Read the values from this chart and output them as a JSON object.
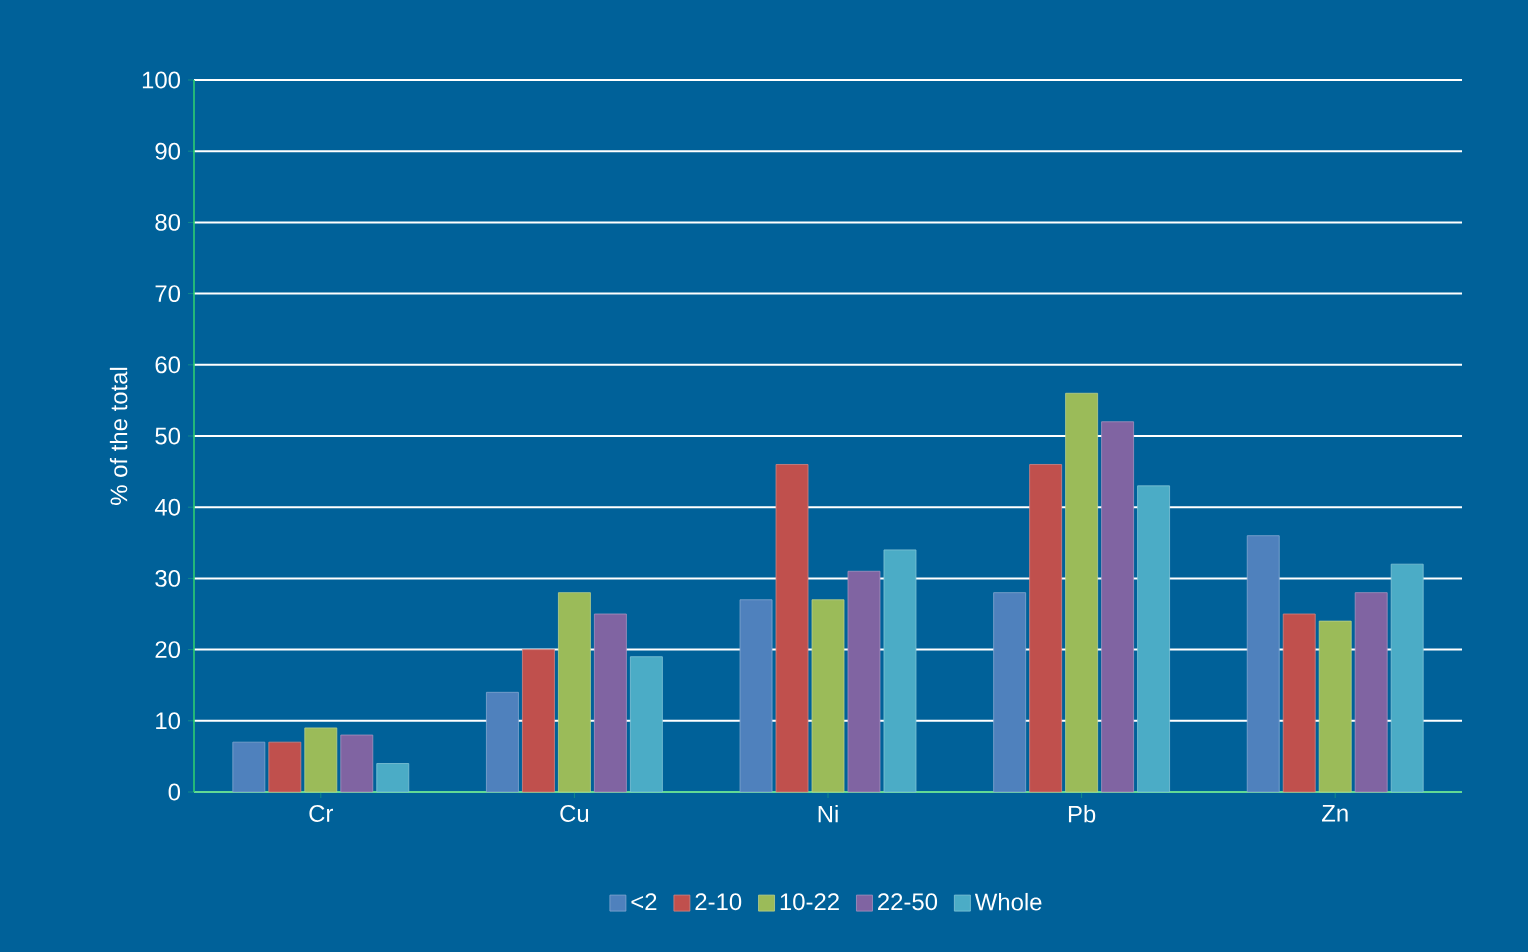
{
  "chart_data": {
    "type": "bar",
    "ylabel": "% of the total",
    "categories": [
      "Cr",
      "Cu",
      "Ni",
      "Pb",
      "Zn"
    ],
    "series": [
      {
        "name": "<2",
        "color": "#4f81bd",
        "values": [
          7,
          14,
          27,
          28,
          36
        ]
      },
      {
        "name": "2-10",
        "color": "#c0504d",
        "values": [
          7,
          20,
          46,
          46,
          25
        ]
      },
      {
        "name": "10-22",
        "color": "#9bbb59",
        "values": [
          9,
          28,
          27,
          56,
          24
        ]
      },
      {
        "name": "22-50",
        "color": "#8064a2",
        "values": [
          8,
          25,
          31,
          52,
          28
        ]
      },
      {
        "name": "Whole",
        "color": "#4bacc6",
        "values": [
          4,
          19,
          34,
          43,
          32
        ]
      }
    ],
    "ylim": [
      0,
      100
    ],
    "yticks": [
      0,
      10,
      20,
      30,
      40,
      50,
      60,
      70,
      80,
      90,
      100
    ],
    "grid": "y",
    "legend": "bottom"
  }
}
